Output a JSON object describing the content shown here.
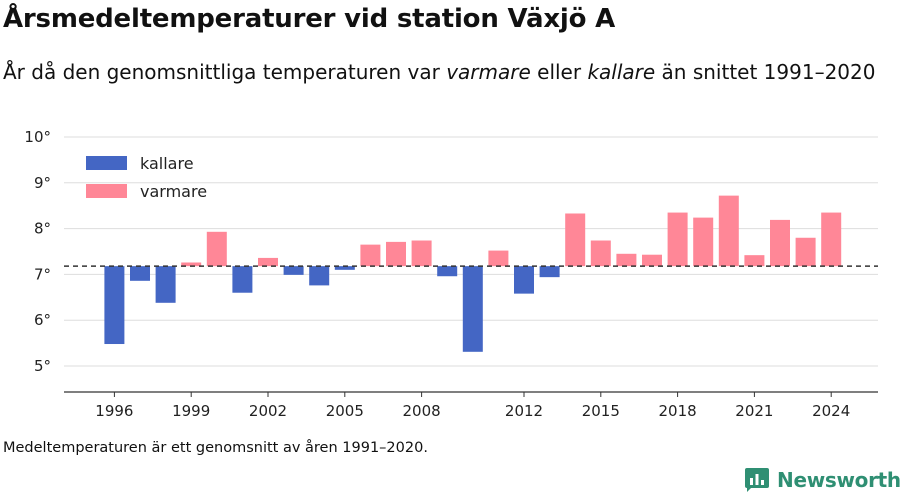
{
  "header": {
    "title": "Årsmedeltemperaturer vid station Växjö A",
    "subtitle_pre": "År då den genomsnittliga temperaturen var ",
    "subtitle_warm": "varmare",
    "subtitle_mid": " eller ",
    "subtitle_cold": "kallare",
    "subtitle_post": " än snittet 1991–2020"
  },
  "footnote": "Medeltemperaturen är ett genomsnitt av åren 1991–2020.",
  "brand": {
    "name": "Newsworthy",
    "color": "#2f8f73"
  },
  "chart_data": {
    "type": "bar",
    "baseline": 7.18,
    "ylim": [
      4.5,
      10.2
    ],
    "yticks": [
      5,
      6,
      7,
      8,
      9,
      10
    ],
    "y_tick_suffix": "°",
    "xticks": [
      1996,
      1999,
      2002,
      2005,
      2008,
      2012,
      2015,
      2018,
      2021,
      2024
    ],
    "grid": true,
    "legend_position": "top-left",
    "legend": [
      {
        "label": "kallare",
        "color": "#4466c4"
      },
      {
        "label": "varmare",
        "color": "#ff8797"
      }
    ],
    "colors": {
      "kallare": "#4466c4",
      "varmare": "#ff8797"
    },
    "years": [
      1996,
      1997,
      1998,
      1999,
      2000,
      2001,
      2002,
      2003,
      2004,
      2005,
      2006,
      2007,
      2008,
      2009,
      2010,
      2011,
      2012,
      2013,
      2014,
      2015,
      2016,
      2017,
      2018,
      2019,
      2020,
      2021,
      2022,
      2023,
      2024
    ],
    "values": [
      5.48,
      6.86,
      6.38,
      7.26,
      7.93,
      6.6,
      7.36,
      6.99,
      6.76,
      7.1,
      7.65,
      7.71,
      7.74,
      6.96,
      5.31,
      7.52,
      6.58,
      6.94,
      8.33,
      7.74,
      7.45,
      7.43,
      8.35,
      8.24,
      8.72,
      7.42,
      8.19,
      7.8,
      8.35
    ]
  }
}
